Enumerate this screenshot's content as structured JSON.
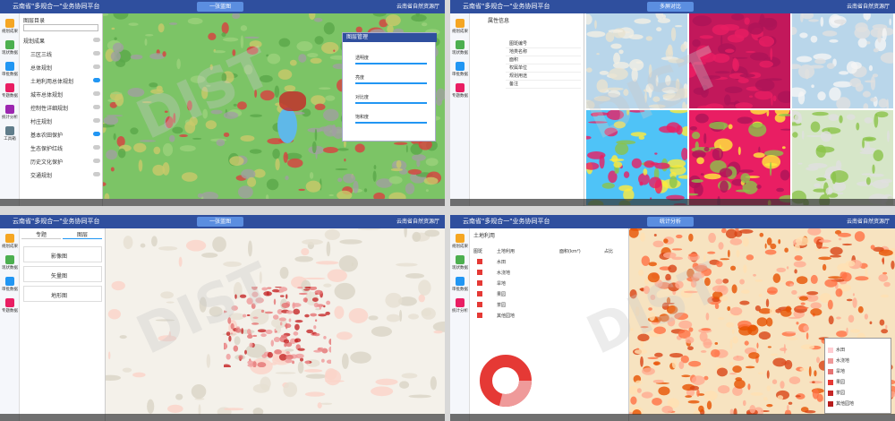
{
  "watermark": "DIST",
  "screens": [
    {
      "header": {
        "title": "云南省\"多规合一\"业务协同平台",
        "tab": "一张蓝图",
        "user": "云南省自然资源厅"
      },
      "sidebar": [
        "规划成果",
        "现状数据",
        "审批数据",
        "专题数据",
        "统计分析",
        "工具箱"
      ],
      "panel": {
        "title": "图层目录",
        "items": [
          "规划成果",
          "三区三线",
          "总体规划",
          "土地利用总体规划",
          "城市总体规划",
          "控制性详细规划",
          "村庄规划",
          "基本农田保护",
          "生态保护红线",
          "历史文化保护",
          "交通规划"
        ]
      },
      "float": {
        "title": "图层管理",
        "sliders": [
          "透明度",
          "亮度",
          "对比度",
          "饱和度"
        ]
      }
    },
    {
      "header": {
        "title": "云南省\"多规合一\"业务协同平台",
        "tab": "多屏对比",
        "user": "云南省自然资源厅"
      },
      "sidebar": [
        "规划成果",
        "现状数据",
        "审批数据",
        "专题数据"
      ],
      "panel": {
        "title": "属性信息",
        "items": [
          "图斑编号",
          "地类名称",
          "面积",
          "权属单位",
          "规划用途",
          "备注"
        ]
      }
    },
    {
      "header": {
        "title": "云南省\"多规合一\"业务协同平台",
        "tab": "一张蓝图",
        "user": "云南省自然资源厅"
      },
      "sidebar": [
        "规划成果",
        "现状数据",
        "审批数据",
        "专题数据"
      ],
      "panel": {
        "tabs": [
          "专题",
          "图层"
        ],
        "items": [
          "影像图",
          "矢量图",
          "地形图"
        ]
      }
    },
    {
      "header": {
        "title": "云南省\"多规合一\"业务协同平台",
        "tab": "统计分析",
        "user": "云南省自然资源厅"
      },
      "sidebar": [
        "规划成果",
        "现状数据",
        "审批数据",
        "统计分析"
      ],
      "panel": {
        "title": "土地利用",
        "columns": [
          "图斑",
          "土地利用",
          "面积(km²)",
          "占比"
        ],
        "items": [
          "水田",
          "水浇地",
          "旱地",
          "果园",
          "茶园",
          "其他园地"
        ]
      }
    }
  ]
}
